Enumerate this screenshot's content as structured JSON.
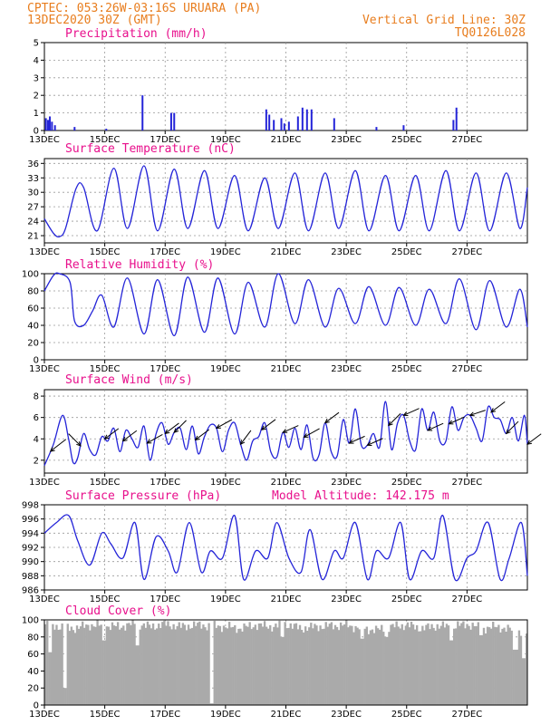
{
  "header": {
    "line1_left": "CPTEC:  053:26W-03:16S  URUARA (PA)",
    "line2_left": "13DEC2020 30Z (GMT)",
    "line1_right": "Vertical Grid Line: 30Z",
    "line2_right": "TQ0126L028"
  },
  "colors": {
    "header": "#e87d1e",
    "panel_title": "#e8108c",
    "series": "#2424d8",
    "cloud": "#aaaaaa",
    "wind_barb": "#000000"
  },
  "chart_data": [
    {
      "type": "bar",
      "title": "Precipitation (mm/h)",
      "x_labels": [
        "13DEC",
        "15DEC",
        "17DEC",
        "19DEC",
        "21DEC",
        "23DEC",
        "25DEC",
        "27DEC"
      ],
      "ylim": [
        0,
        5
      ],
      "yticks": [
        0,
        1,
        2,
        3,
        4,
        5
      ],
      "events": [
        {
          "t": 0.05,
          "v": 0.7
        },
        {
          "t": 0.12,
          "v": 0.6
        },
        {
          "t": 0.18,
          "v": 0.8
        },
        {
          "t": 0.25,
          "v": 0.5
        },
        {
          "t": 0.35,
          "v": 0.3
        },
        {
          "t": 1.0,
          "v": 0.2
        },
        {
          "t": 2.05,
          "v": 0.1
        },
        {
          "t": 3.25,
          "v": 2.0
        },
        {
          "t": 4.2,
          "v": 1.0
        },
        {
          "t": 4.3,
          "v": 1.0
        },
        {
          "t": 7.35,
          "v": 1.2
        },
        {
          "t": 7.45,
          "v": 0.9
        },
        {
          "t": 7.6,
          "v": 0.6
        },
        {
          "t": 7.85,
          "v": 0.7
        },
        {
          "t": 7.95,
          "v": 0.4
        },
        {
          "t": 8.1,
          "v": 0.5
        },
        {
          "t": 8.4,
          "v": 0.8
        },
        {
          "t": 8.55,
          "v": 1.3
        },
        {
          "t": 8.7,
          "v": 1.2
        },
        {
          "t": 8.85,
          "v": 1.2
        },
        {
          "t": 9.6,
          "v": 0.7
        },
        {
          "t": 11.0,
          "v": 0.2
        },
        {
          "t": 11.9,
          "v": 0.3
        },
        {
          "t": 13.55,
          "v": 0.6
        },
        {
          "t": 13.65,
          "v": 1.3
        }
      ]
    },
    {
      "type": "line",
      "title": "Surface Temperature (nC)",
      "x_labels": [
        "13DEC",
        "15DEC",
        "17DEC",
        "19DEC",
        "21DEC",
        "23DEC",
        "25DEC",
        "27DEC"
      ],
      "ylim": [
        19.5,
        37
      ],
      "yticks": [
        21,
        24,
        27,
        30,
        33,
        36
      ],
      "x": [
        0,
        0.3,
        0.5,
        0.7,
        1.05,
        1.3,
        1.75,
        2.3,
        2.75,
        3.3,
        3.75,
        4.3,
        4.75,
        5.3,
        5.75,
        6.3,
        6.75,
        7.3,
        7.75,
        8.3,
        8.75,
        9.3,
        9.75,
        10.3,
        10.75,
        11.3,
        11.75,
        12.3,
        12.75,
        13.3,
        13.75,
        14.3,
        14.75,
        15.3,
        15.75,
        16
      ],
      "values": [
        24.5,
        21.5,
        20.8,
        22.5,
        30.8,
        31.0,
        22.0,
        35.0,
        22.5,
        35.5,
        22.0,
        34.8,
        22.5,
        34.5,
        22.5,
        33.5,
        22.0,
        33.0,
        22.5,
        34.0,
        22.0,
        34.0,
        22.5,
        34.5,
        22.0,
        33.5,
        22.0,
        33.5,
        22.0,
        34.5,
        22.0,
        34.0,
        22.0,
        34.0,
        22.5,
        31.0
      ]
    },
    {
      "type": "line",
      "title": "Relative Humidity (%)",
      "x_labels": [
        "13DEC",
        "15DEC",
        "17DEC",
        "19DEC",
        "21DEC",
        "23DEC",
        "25DEC",
        "27DEC"
      ],
      "ylim": [
        0,
        100
      ],
      "yticks": [
        0,
        20,
        40,
        60,
        80,
        100
      ],
      "x": [
        0,
        0.3,
        0.5,
        0.85,
        1.0,
        1.3,
        1.6,
        1.9,
        2.3,
        2.75,
        3.3,
        3.75,
        4.3,
        4.75,
        5.3,
        5.75,
        6.3,
        6.75,
        7.3,
        7.75,
        8.3,
        8.75,
        9.3,
        9.75,
        10.3,
        10.75,
        11.3,
        11.75,
        12.3,
        12.75,
        13.3,
        13.75,
        14.3,
        14.75,
        15.3,
        15.75,
        16
      ],
      "values": [
        80,
        98,
        100,
        90,
        45,
        40,
        57,
        75,
        38,
        95,
        30,
        93,
        28,
        96,
        32,
        95,
        30,
        90,
        38,
        100,
        42,
        93,
        38,
        83,
        42,
        85,
        40,
        84,
        40,
        82,
        42,
        94,
        35,
        92,
        38,
        82,
        38
      ]
    },
    {
      "type": "line",
      "title": "Surface Wind (m/s)",
      "x_labels": [
        "13DEC",
        "15DEC",
        "17DEC",
        "19DEC",
        "21DEC",
        "23DEC",
        "25DEC",
        "27DEC"
      ],
      "ylim": [
        0.8,
        8.6
      ],
      "yticks": [
        2,
        4,
        6,
        8
      ],
      "x": [
        0,
        0.3,
        0.6,
        0.8,
        0.95,
        1.1,
        1.3,
        1.5,
        1.7,
        1.9,
        2.1,
        2.3,
        2.5,
        2.7,
        2.9,
        3.1,
        3.3,
        3.5,
        3.7,
        3.9,
        4.1,
        4.3,
        4.5,
        4.7,
        4.9,
        5.1,
        5.3,
        5.5,
        5.7,
        5.9,
        6.1,
        6.3,
        6.5,
        6.7,
        6.9,
        7.1,
        7.3,
        7.5,
        7.7,
        7.9,
        8.1,
        8.3,
        8.5,
        8.7,
        8.9,
        9.1,
        9.3,
        9.5,
        9.7,
        9.9,
        10.1,
        10.3,
        10.5,
        10.7,
        10.9,
        11.1,
        11.3,
        11.5,
        11.7,
        11.9,
        12.1,
        12.3,
        12.5,
        12.7,
        12.9,
        13.1,
        13.3,
        13.5,
        13.7,
        13.9,
        14.1,
        14.3,
        14.5,
        14.7,
        14.9,
        15.1,
        15.3,
        15.5,
        15.7,
        15.9,
        16
      ],
      "values": [
        1.5,
        3.5,
        6.2,
        4.0,
        1.8,
        2.2,
        4.5,
        3.0,
        2.5,
        4.2,
        3.8,
        5.0,
        2.8,
        4.8,
        4.0,
        3.2,
        5.2,
        2.0,
        4.5,
        5.5,
        3.5,
        4.6,
        5.0,
        3.0,
        5.2,
        2.6,
        4.2,
        5.3,
        5.0,
        2.8,
        4.8,
        5.5,
        3.5,
        2.0,
        3.8,
        4.2,
        5.5,
        2.8,
        2.3,
        4.6,
        3.2,
        5.0,
        3.0,
        5.3,
        2.2,
        2.5,
        5.5,
        2.8,
        2.4,
        5.8,
        3.6,
        6.8,
        3.4,
        3.4,
        4.5,
        3.2,
        7.5,
        3.0,
        5.5,
        6.2,
        3.8,
        3.0,
        6.8,
        4.8,
        6.5,
        3.8,
        3.8,
        7.0,
        4.8,
        6.0,
        6.2,
        5.0,
        3.8,
        7.0,
        6.0,
        5.8,
        4.5,
        6.0,
        3.8,
        6.2,
        3.5
      ],
      "barbs": [
        {
          "t": 0.2,
          "u": 0.9,
          "v": 0.7
        },
        {
          "t": 1.2,
          "u": -0.7,
          "v": 0.7
        },
        {
          "t": 2.0,
          "u": 0.8,
          "v": 0.6
        },
        {
          "t": 2.6,
          "u": 0.8,
          "v": 0.6
        },
        {
          "t": 3.4,
          "u": 0.9,
          "v": 0.5
        },
        {
          "t": 4.0,
          "u": 0.8,
          "v": 0.6
        },
        {
          "t": 4.3,
          "u": 0.7,
          "v": 0.7
        },
        {
          "t": 5.0,
          "u": 0.8,
          "v": 0.6
        },
        {
          "t": 5.7,
          "u": 0.9,
          "v": 0.5
        },
        {
          "t": 6.5,
          "u": 0.6,
          "v": 0.8
        },
        {
          "t": 7.2,
          "u": 0.8,
          "v": 0.6
        },
        {
          "t": 7.9,
          "u": 0.9,
          "v": 0.4
        },
        {
          "t": 8.6,
          "u": 0.9,
          "v": 0.5
        },
        {
          "t": 9.3,
          "u": 0.8,
          "v": 0.6
        },
        {
          "t": 10.1,
          "u": 0.9,
          "v": 0.4
        },
        {
          "t": 10.7,
          "u": 0.9,
          "v": 0.4
        },
        {
          "t": 11.4,
          "u": 0.7,
          "v": 0.7
        },
        {
          "t": 11.9,
          "u": 0.9,
          "v": 0.4
        },
        {
          "t": 12.7,
          "u": 0.9,
          "v": 0.4
        },
        {
          "t": 13.4,
          "u": 0.9,
          "v": 0.4
        },
        {
          "t": 14.1,
          "u": 0.9,
          "v": 0.3
        },
        {
          "t": 14.8,
          "u": 0.8,
          "v": 0.6
        },
        {
          "t": 15.3,
          "u": 0.7,
          "v": 0.7
        },
        {
          "t": 16.0,
          "u": 0.8,
          "v": 0.6
        }
      ]
    },
    {
      "type": "line",
      "title": "Surface Pressure (hPa)",
      "annotation": "Model Altitude: 142.175 m",
      "x_labels": [
        "13DEC",
        "15DEC",
        "17DEC",
        "19DEC",
        "21DEC",
        "23DEC",
        "25DEC",
        "27DEC"
      ],
      "ylim": [
        986,
        998
      ],
      "yticks": [
        986,
        988,
        990,
        992,
        994,
        996,
        998
      ],
      "x": [
        0,
        0.4,
        0.8,
        1.1,
        1.5,
        1.9,
        2.2,
        2.6,
        3.0,
        3.3,
        3.7,
        4.1,
        4.4,
        4.8,
        5.2,
        5.5,
        5.9,
        6.3,
        6.6,
        7.0,
        7.4,
        7.7,
        8.1,
        8.5,
        8.8,
        9.2,
        9.6,
        9.9,
        10.3,
        10.7,
        11.0,
        11.4,
        11.8,
        12.1,
        12.5,
        12.9,
        13.2,
        13.6,
        14.0,
        14.3,
        14.7,
        15.1,
        15.4,
        15.8,
        16
      ],
      "values": [
        994,
        995.5,
        996.5,
        993,
        989.5,
        994,
        992.5,
        990.5,
        995.5,
        987.5,
        993.5,
        991.5,
        988.5,
        995.5,
        988.5,
        991.5,
        990.5,
        996.5,
        987.5,
        991.5,
        990.5,
        995.5,
        990.5,
        988.5,
        994.5,
        987.5,
        991.5,
        990.5,
        995.5,
        987.5,
        991.5,
        990.5,
        995.5,
        987.5,
        991.5,
        990.5,
        996.5,
        987.5,
        990.5,
        991.5,
        995.5,
        987.5,
        990.5,
        995.5,
        988
      ]
    },
    {
      "type": "area",
      "title": "Cloud Cover (%)",
      "x_labels": [
        "13DEC",
        "15DEC",
        "17DEC",
        "19DEC",
        "21DEC",
        "23DEC",
        "25DEC",
        "27DEC"
      ],
      "ylim": [
        0,
        100
      ],
      "yticks": [
        0,
        20,
        40,
        60,
        80,
        100
      ],
      "x": [
        0,
        0.5,
        1.0,
        1.5,
        2.0,
        2.5,
        3.0,
        3.5,
        4.0,
        4.5,
        5.0,
        5.5,
        6.0,
        6.5,
        7.0,
        7.5,
        8.0,
        8.5,
        9.0,
        9.5,
        10.0,
        10.5,
        11.0,
        11.5,
        12.0,
        12.5,
        13.0,
        13.5,
        14.0,
        14.5,
        15.0,
        15.5,
        16.0
      ],
      "values": [
        95,
        92,
        90,
        94,
        93,
        92,
        96,
        92,
        95,
        92,
        94,
        93,
        92,
        90,
        94,
        92,
        95,
        90,
        92,
        93,
        94,
        90,
        88,
        92,
        94,
        90,
        93,
        92,
        95,
        90,
        92,
        88,
        85
      ],
      "dips": [
        {
          "t": 0.2,
          "v": 62
        },
        {
          "t": 0.65,
          "v": 20
        },
        {
          "t": 1.95,
          "v": 76
        },
        {
          "t": 3.1,
          "v": 70
        },
        {
          "t": 5.55,
          "v": 2
        },
        {
          "t": 7.85,
          "v": 80
        },
        {
          "t": 10.5,
          "v": 78
        },
        {
          "t": 11.3,
          "v": 80
        },
        {
          "t": 13.45,
          "v": 76
        },
        {
          "t": 14.45,
          "v": 82
        },
        {
          "t": 15.6,
          "v": 65
        },
        {
          "t": 15.85,
          "v": 55
        }
      ]
    }
  ]
}
